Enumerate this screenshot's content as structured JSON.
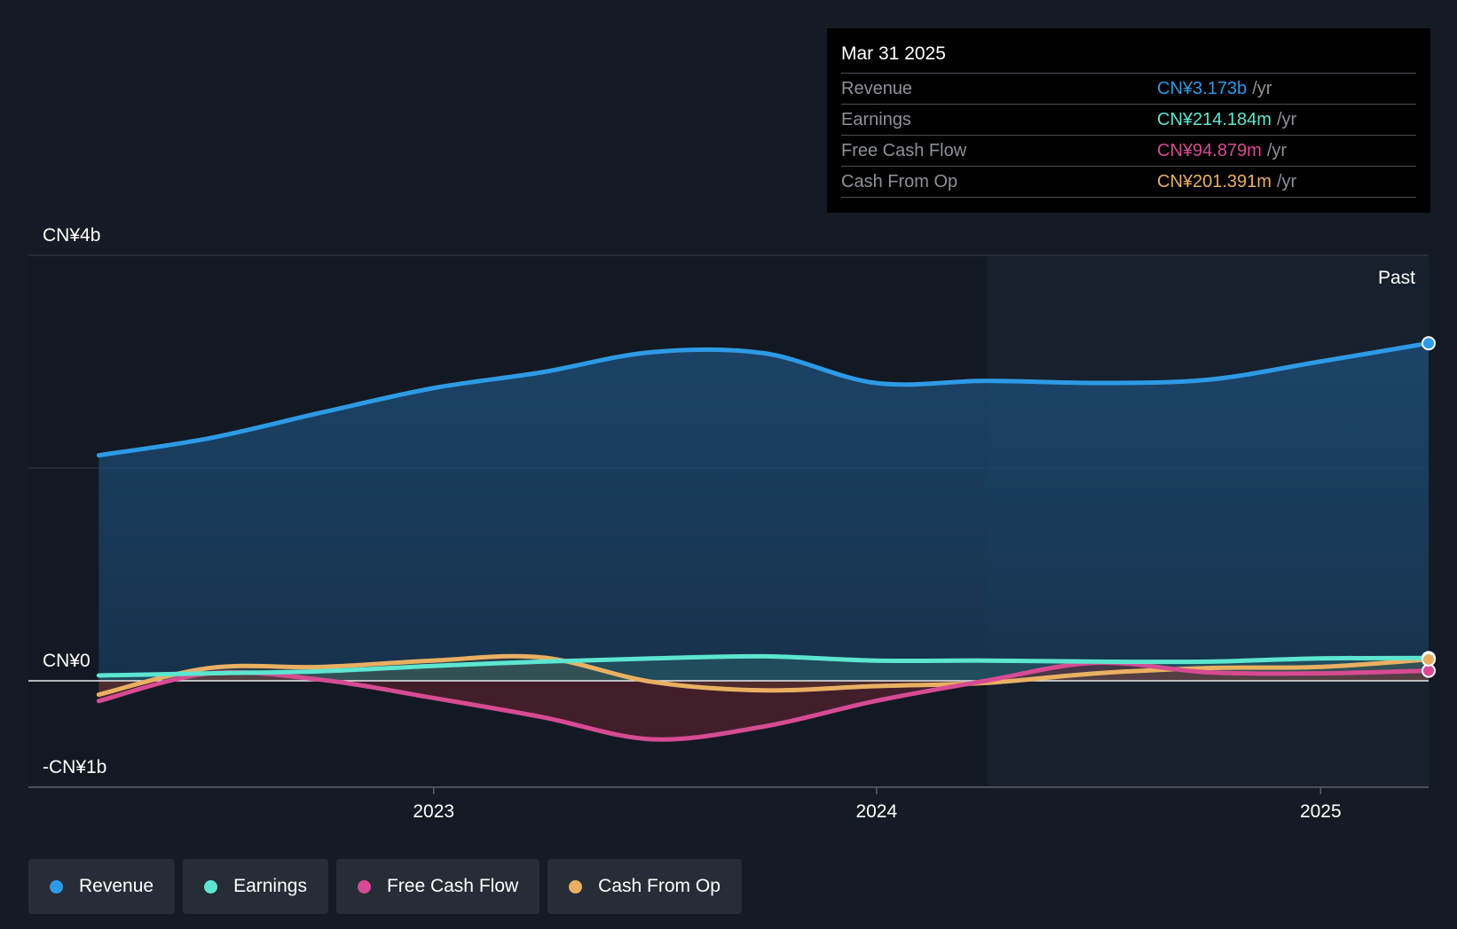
{
  "tooltip": {
    "date": "Mar 31 2025",
    "rows": [
      {
        "label": "Revenue",
        "value": "CN¥3.173b",
        "unit": "/yr",
        "color": "#2d9ae6"
      },
      {
        "label": "Earnings",
        "value": "CN¥214.184m",
        "unit": "/yr",
        "color": "#5ce6d1"
      },
      {
        "label": "Free Cash Flow",
        "value": "CN¥94.879m",
        "unit": "/yr",
        "color": "#d64b93"
      },
      {
        "label": "Cash From Op",
        "value": "CN¥201.391m",
        "unit": "/yr",
        "color": "#e9b062"
      }
    ]
  },
  "chart_data": {
    "type": "line",
    "y_axis": {
      "tick_labels": [
        "CN¥4b",
        "CN¥0",
        "-CN¥1b"
      ],
      "ylim": [
        -1,
        4
      ],
      "unit": "CN¥ b"
    },
    "x_axis": {
      "tick_labels": [
        "2023",
        "2024",
        "2025"
      ],
      "xlim": [
        "2022-02-01",
        "2025-03-31"
      ]
    },
    "grid": true,
    "past_label": "Past",
    "past_start": "2024-04-01",
    "x": [
      "2022-03-31",
      "2022-06-30",
      "2022-09-30",
      "2022-12-31",
      "2023-03-31",
      "2023-06-30",
      "2023-09-30",
      "2023-12-31",
      "2024-03-31",
      "2024-06-30",
      "2024-09-30",
      "2024-12-31",
      "2025-03-31"
    ],
    "series": [
      {
        "name": "Revenue",
        "color": "#2d9ae6",
        "values": [
          2.12,
          2.28,
          2.52,
          2.75,
          2.9,
          3.09,
          3.08,
          2.8,
          2.82,
          2.8,
          2.83,
          3.0,
          3.173
        ]
      },
      {
        "name": "Earnings",
        "color": "#5ce6d1",
        "values": [
          0.05,
          0.07,
          0.09,
          0.14,
          0.18,
          0.21,
          0.23,
          0.19,
          0.19,
          0.18,
          0.18,
          0.21,
          0.214
        ]
      },
      {
        "name": "Free Cash Flow",
        "color": "#d64b93",
        "values": [
          -0.19,
          0.07,
          0.01,
          -0.16,
          -0.34,
          -0.55,
          -0.43,
          -0.19,
          0.0,
          0.17,
          0.08,
          0.07,
          0.095
        ]
      },
      {
        "name": "Cash From Op",
        "color": "#e9b062",
        "values": [
          -0.13,
          0.12,
          0.13,
          0.19,
          0.22,
          -0.01,
          -0.09,
          -0.05,
          -0.02,
          0.07,
          0.12,
          0.13,
          0.201
        ]
      }
    ]
  },
  "legend": [
    {
      "label": "Revenue",
      "color": "#2d9ae6"
    },
    {
      "label": "Earnings",
      "color": "#5ce6d1"
    },
    {
      "label": "Free Cash Flow",
      "color": "#d64b93"
    },
    {
      "label": "Cash From Op",
      "color": "#e9b062"
    }
  ]
}
